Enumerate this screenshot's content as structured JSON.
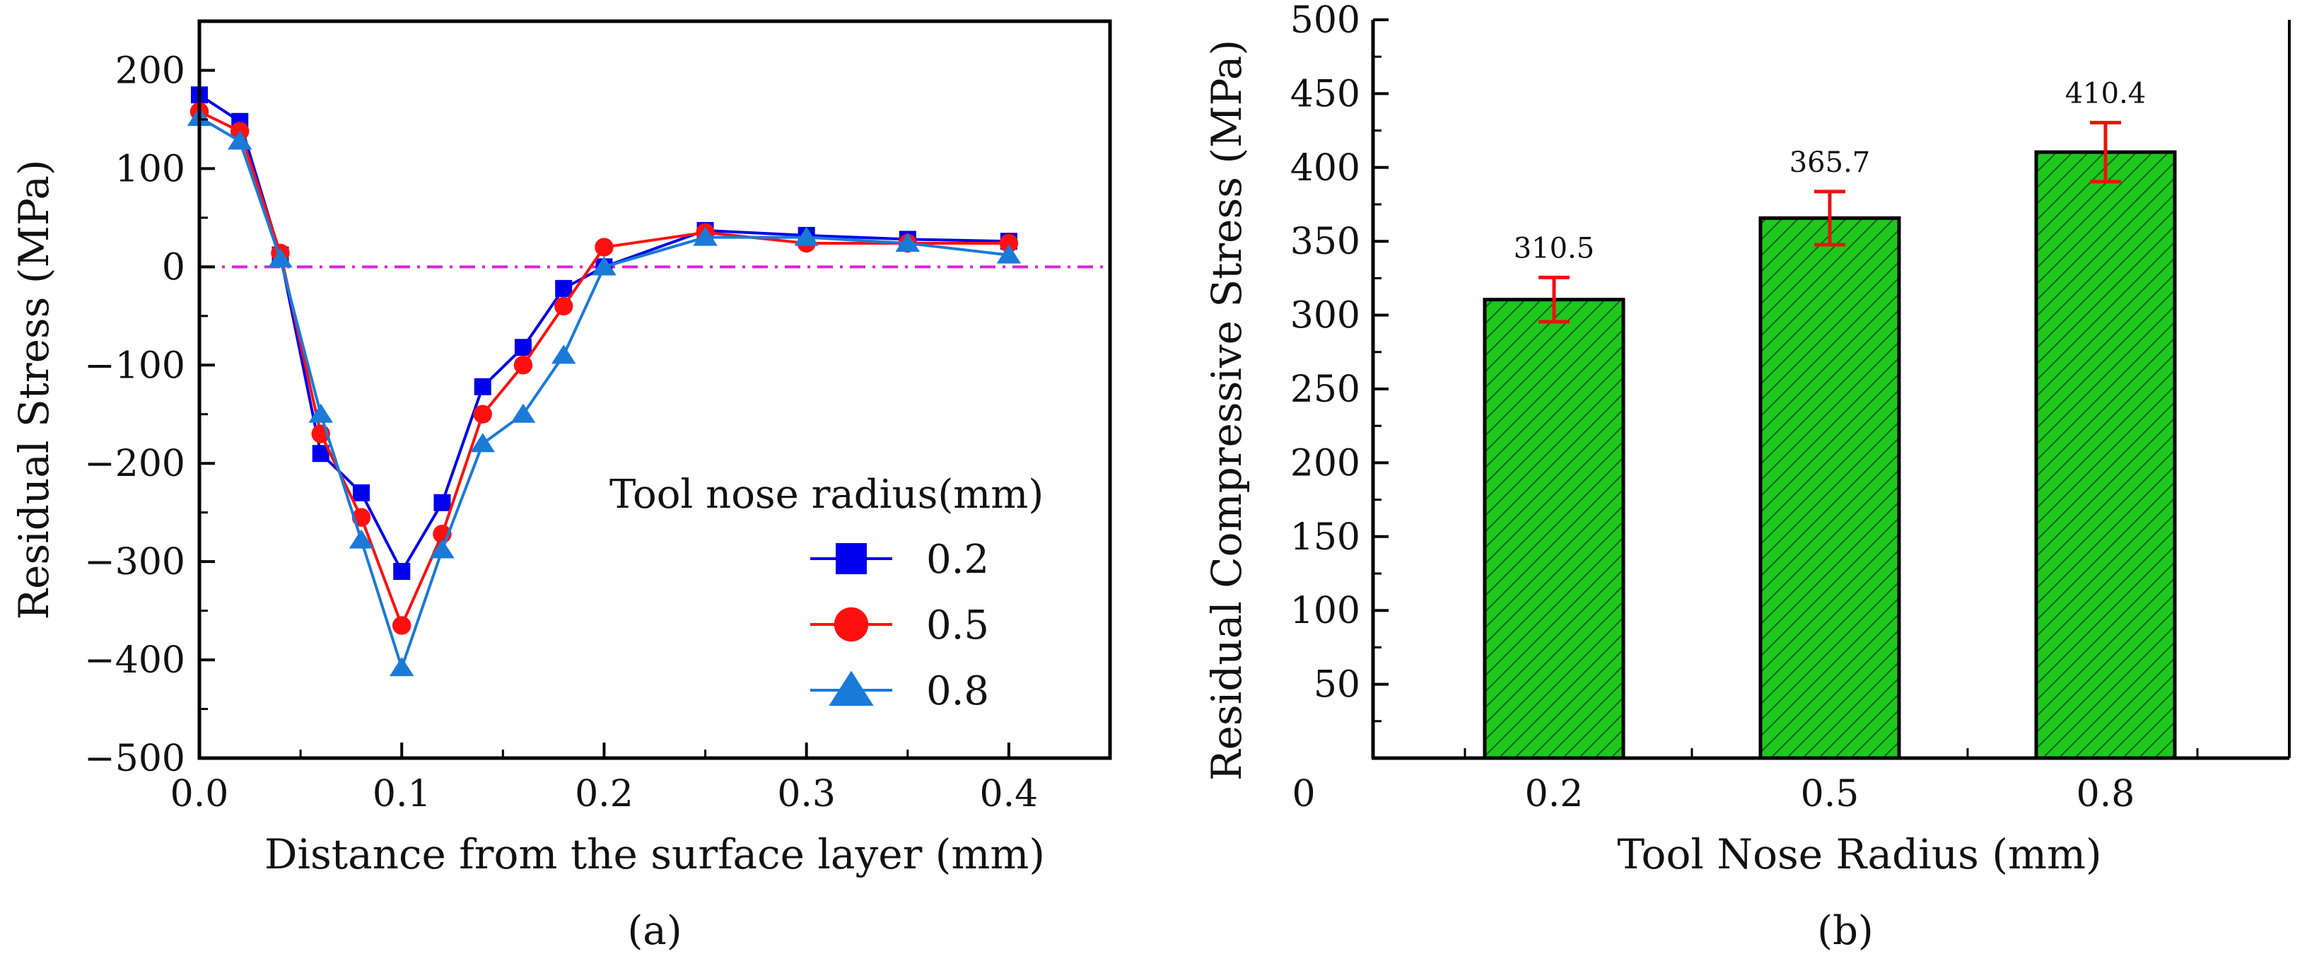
{
  "chart_data": [
    {
      "type": "line",
      "panel_label": "(a)",
      "xlabel": "Distance from the surface layer (mm)",
      "ylabel": "Residual Stress (MPa)",
      "xlim": [
        0,
        0.45
      ],
      "ylim": [
        -500,
        250
      ],
      "x_ticks": [
        "0.0",
        "0.1",
        "0.2",
        "0.3",
        "0.4"
      ],
      "x_tick_values": [
        0,
        0.1,
        0.2,
        0.3,
        0.4
      ],
      "y_ticks": [
        "−500",
        "−400",
        "−300",
        "−200",
        "−100",
        "0",
        "100",
        "200"
      ],
      "y_tick_values": [
        -500,
        -400,
        -300,
        -200,
        -100,
        0,
        100,
        200
      ],
      "reference_line_y": 0,
      "reference_line_color": "#e020e0",
      "legend_title": "Tool nose radius(mm)",
      "legend_position": "lower-right",
      "x": [
        0,
        0.02,
        0.04,
        0.06,
        0.08,
        0.1,
        0.12,
        0.14,
        0.16,
        0.18,
        0.2,
        0.25,
        0.3,
        0.35,
        0.4
      ],
      "series": [
        {
          "name": "0.2",
          "marker": "square",
          "color": "#0000ee",
          "values": [
            175,
            148,
            12,
            -190,
            -230,
            -310,
            -240,
            -122,
            -82,
            -22,
            0,
            37,
            32,
            28,
            26
          ]
        },
        {
          "name": "0.5",
          "marker": "circle",
          "color": "#ff1010",
          "values": [
            158,
            138,
            14,
            -170,
            -255,
            -365,
            -272,
            -150,
            -100,
            -40,
            20,
            35,
            24,
            24,
            24
          ]
        },
        {
          "name": "0.8",
          "marker": "triangle",
          "color": "#1a7ad8",
          "values": [
            152,
            128,
            8,
            -150,
            -278,
            -408,
            -288,
            -180,
            -150,
            -90,
            0,
            30,
            30,
            24,
            12
          ]
        }
      ]
    },
    {
      "type": "bar",
      "panel_label": "(b)",
      "xlabel": "Tool Nose Radius (mm)",
      "ylabel": "Residual Compressive Stress (MPa)",
      "origin_label": "0",
      "categories": [
        "0.2",
        "0.5",
        "0.8"
      ],
      "values": [
        310.5,
        365.7,
        410.4
      ],
      "value_labels": [
        "310.5",
        "365.7",
        "410.4"
      ],
      "errors": [
        15,
        18,
        20
      ],
      "ylim": [
        0,
        500
      ],
      "y_ticks": [
        "50",
        "100",
        "150",
        "200",
        "250",
        "300",
        "350",
        "400",
        "450",
        "500"
      ],
      "y_tick_values": [
        50,
        100,
        150,
        200,
        250,
        300,
        350,
        400,
        450,
        500
      ],
      "bar_color": "#1ec81e",
      "error_color": "#ee1010"
    }
  ]
}
